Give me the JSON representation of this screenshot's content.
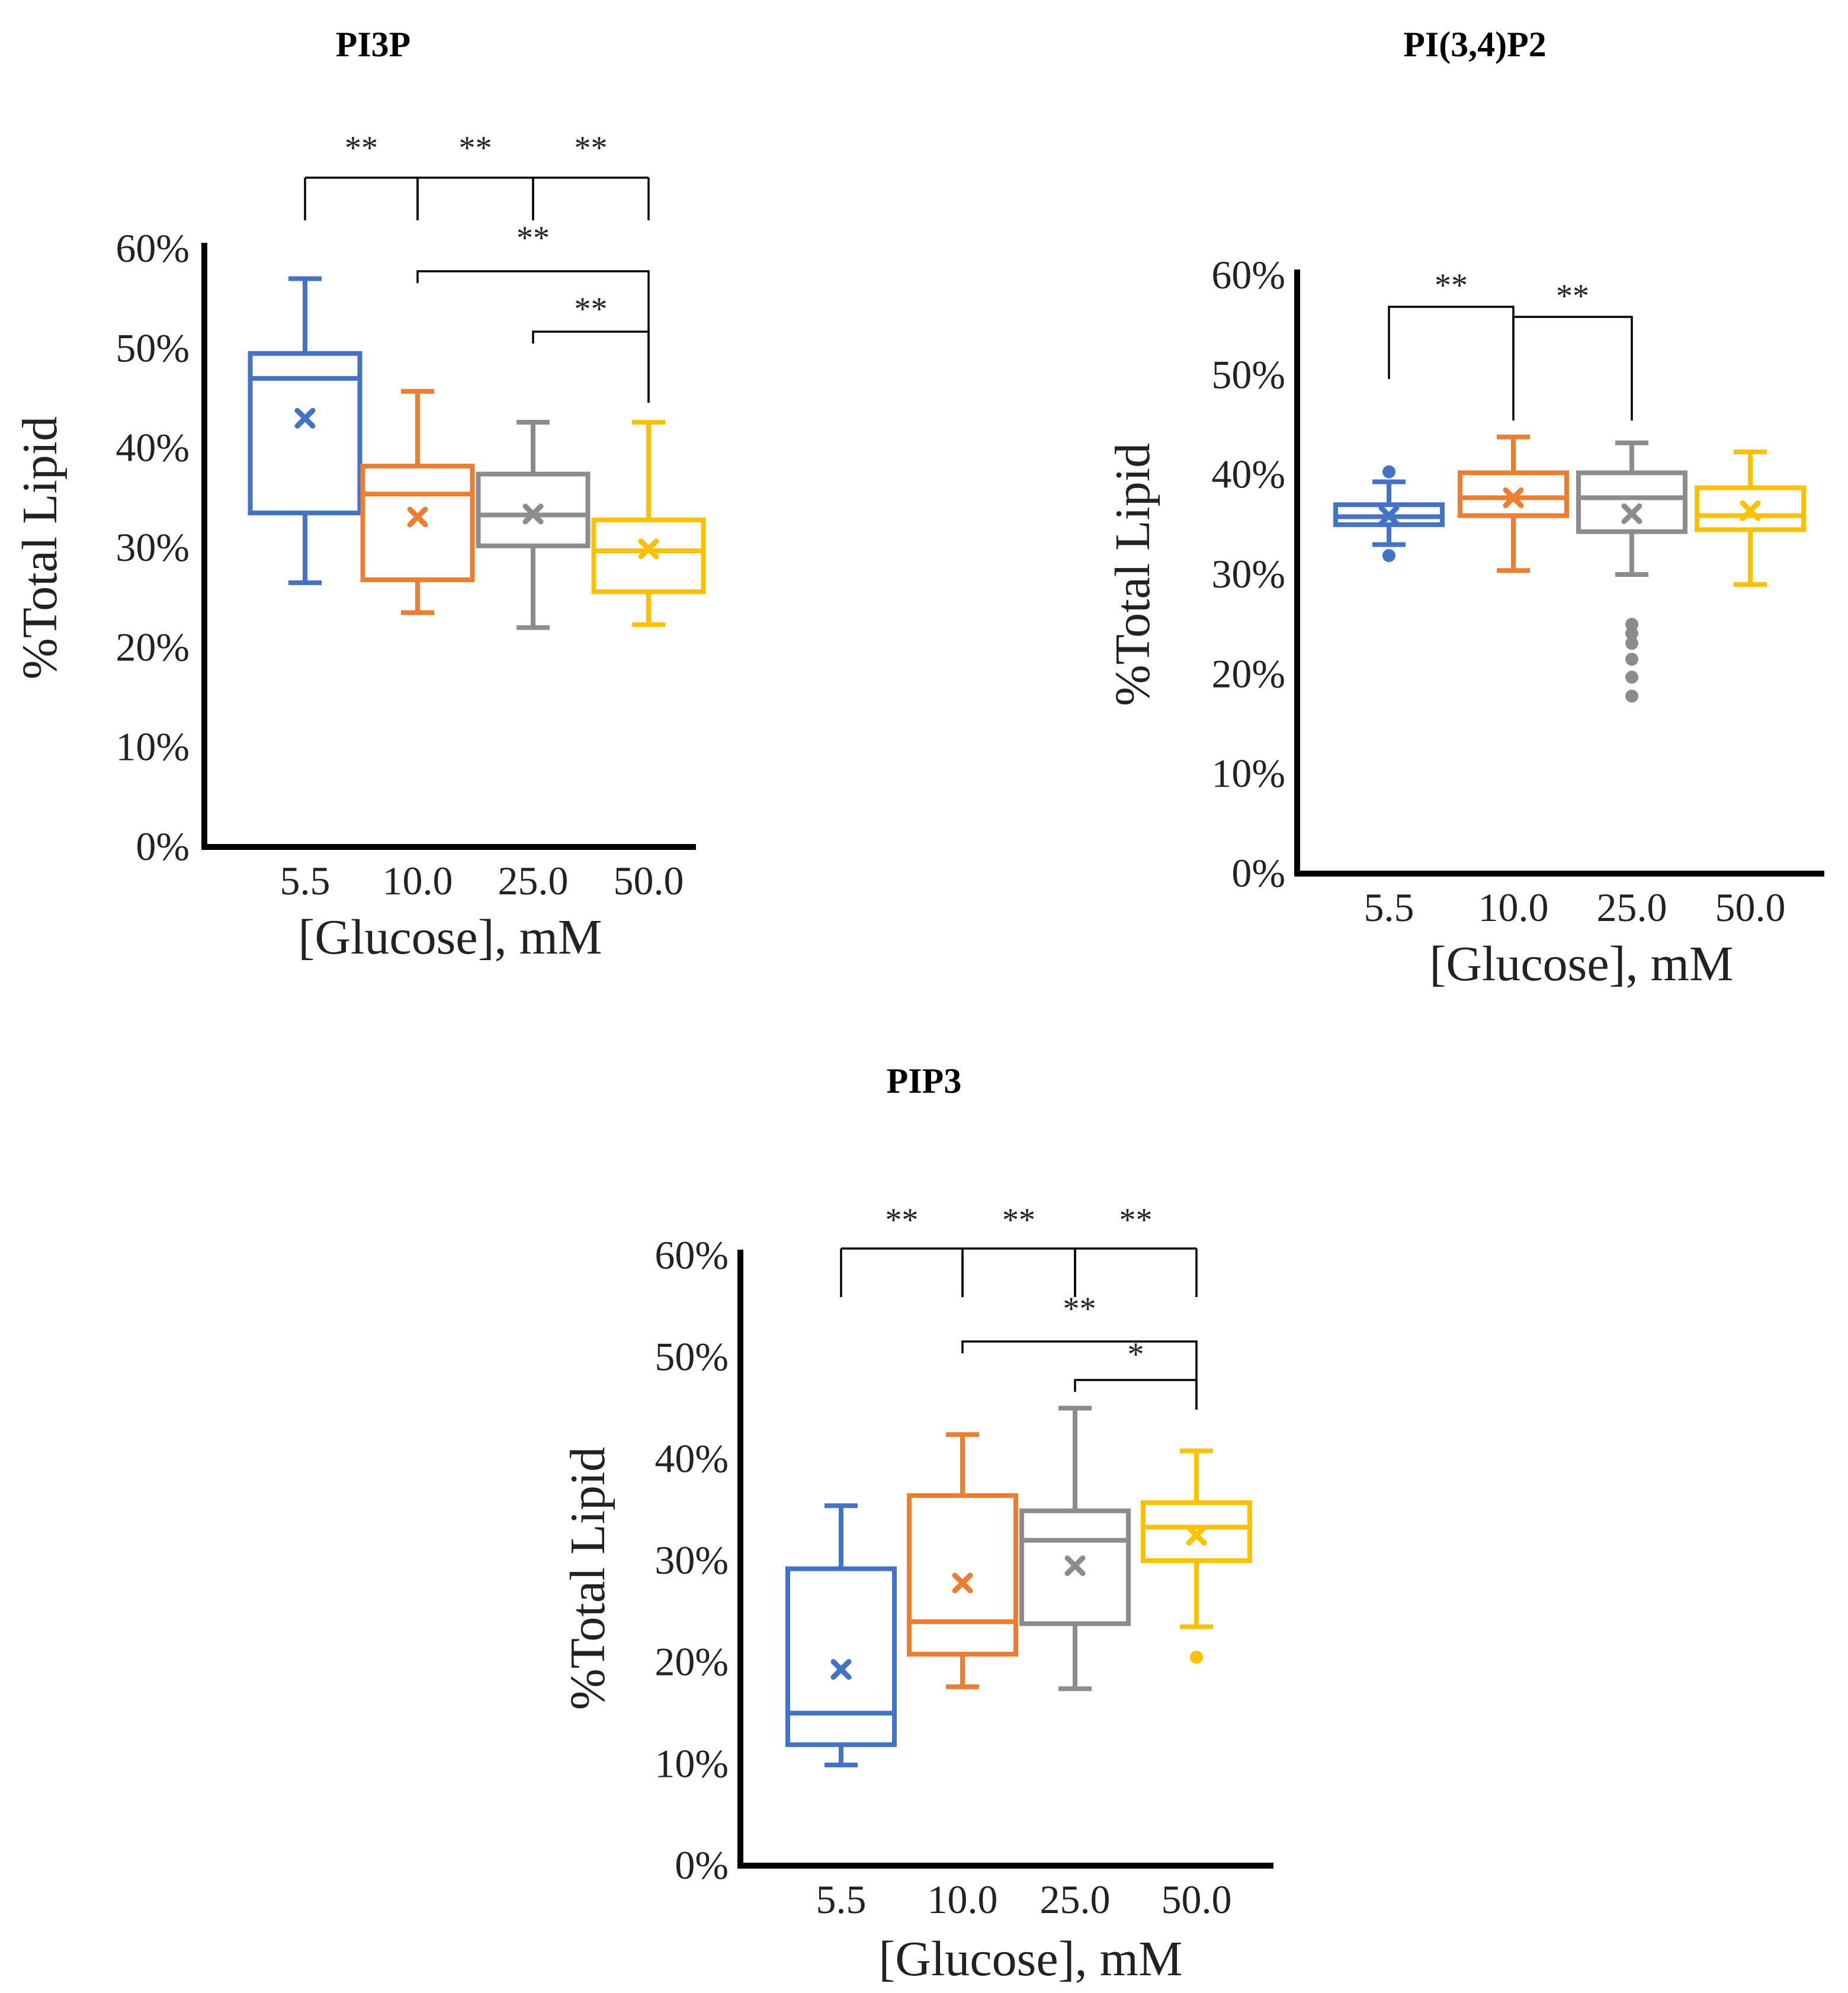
{
  "figure": {
    "colors": {
      "5.5": "#4472C4",
      "10.0": "#ED7D31",
      "25.0": "#8C8C8C",
      "50.0": "#FFC000"
    }
  },
  "chart_data": [
    {
      "type": "box",
      "title": "PI3P",
      "xlabel": "[Glucose], mM",
      "ylabel": "%Total Lipid",
      "ylim": [
        0,
        60
      ],
      "yticks": [
        "0%",
        "10%",
        "20%",
        "30%",
        "40%",
        "50%",
        "60%"
      ],
      "categories": [
        "5.5",
        "10.0",
        "25.0",
        "50.0"
      ],
      "boxes": [
        {
          "category": "5.5",
          "whisker_low": 26.5,
          "q1": 33.5,
          "median": 47.0,
          "q3": 49.5,
          "whisker_high": 57.0,
          "mean": 43.0,
          "outliers": []
        },
        {
          "category": "10.0",
          "whisker_low": 23.5,
          "q1": 26.8,
          "median": 35.4,
          "q3": 38.2,
          "whisker_high": 45.7,
          "mean": 33.1,
          "outliers": []
        },
        {
          "category": "25.0",
          "whisker_low": 22.0,
          "q1": 30.2,
          "median": 33.3,
          "q3": 37.4,
          "whisker_high": 42.6,
          "mean": 33.4,
          "outliers": []
        },
        {
          "category": "50.0",
          "whisker_low": 22.3,
          "q1": 25.6,
          "median": 29.7,
          "q3": 32.8,
          "whisker_high": 42.6,
          "mean": 29.9,
          "outliers": []
        }
      ],
      "significance": [
        {
          "from": "5.5",
          "to": "10.0",
          "label": "**"
        },
        {
          "from": "10.0",
          "to": "25.0",
          "label": "**"
        },
        {
          "from": "25.0",
          "to": "50.0",
          "label": "**"
        },
        {
          "from": "10.0",
          "to": "50.0",
          "label": "**"
        },
        {
          "from": "25.0",
          "to": "50.0",
          "label": "**"
        }
      ]
    },
    {
      "type": "box",
      "title": "PI(3,4)P2",
      "xlabel": "[Glucose], mM",
      "ylabel": "%Total Lipid",
      "ylim": [
        0,
        60
      ],
      "yticks": [
        "0%",
        "10%",
        "20%",
        "30%",
        "40%",
        "50%",
        "60%"
      ],
      "categories": [
        "5.5",
        "10.0",
        "25.0",
        "50.0"
      ],
      "boxes": [
        {
          "category": "5.5",
          "whisker_low": 33.0,
          "q1": 35.0,
          "median": 35.8,
          "q3": 37.0,
          "whisker_high": 39.3,
          "mean": 35.9,
          "outliers": [
            31.9,
            40.3
          ]
        },
        {
          "category": "10.0",
          "whisker_low": 30.4,
          "q1": 35.9,
          "median": 37.7,
          "q3": 40.2,
          "whisker_high": 43.8,
          "mean": 37.7,
          "outliers": []
        },
        {
          "category": "25.0",
          "whisker_low": 30.0,
          "q1": 34.3,
          "median": 37.7,
          "q3": 40.2,
          "whisker_high": 43.2,
          "mean": 36.1,
          "outliers": [
            17.8,
            19.7,
            21.5,
            23.1,
            24.1,
            25.0
          ]
        },
        {
          "category": "50.0",
          "whisker_low": 29.0,
          "q1": 34.5,
          "median": 35.9,
          "q3": 38.7,
          "whisker_high": 42.3,
          "mean": 36.4,
          "outliers": []
        }
      ],
      "significance": [
        {
          "from": "5.5",
          "to": "10.0",
          "label": "**"
        },
        {
          "from": "10.0",
          "to": "25.0",
          "label": "**"
        }
      ]
    },
    {
      "type": "box",
      "title": "PIP3",
      "xlabel": "[Glucose], mM",
      "ylabel": "%Total Lipid",
      "ylim": [
        0,
        60
      ],
      "yticks": [
        "0%",
        "10%",
        "20%",
        "30%",
        "40%",
        "50%",
        "60%"
      ],
      "categories": [
        "5.5",
        "10.0",
        "25.0",
        "50.0"
      ],
      "boxes": [
        {
          "category": "5.5",
          "whisker_low": 9.9,
          "q1": 11.9,
          "median": 15.0,
          "q3": 29.2,
          "whisker_high": 35.4,
          "mean": 19.3,
          "outliers": []
        },
        {
          "category": "10.0",
          "whisker_low": 17.6,
          "q1": 20.8,
          "median": 24.0,
          "q3": 36.4,
          "whisker_high": 42.4,
          "mean": 27.8,
          "outliers": []
        },
        {
          "category": "25.0",
          "whisker_low": 17.4,
          "q1": 23.8,
          "median": 32.0,
          "q3": 34.9,
          "whisker_high": 45.0,
          "mean": 29.5,
          "outliers": []
        },
        {
          "category": "50.0",
          "whisker_low": 23.5,
          "q1": 30.0,
          "median": 33.3,
          "q3": 35.7,
          "whisker_high": 40.8,
          "mean": 32.5,
          "outliers": [
            20.5
          ]
        }
      ],
      "significance": [
        {
          "from": "5.5",
          "to": "10.0",
          "label": "**"
        },
        {
          "from": "10.0",
          "to": "25.0",
          "label": "**"
        },
        {
          "from": "25.0",
          "to": "50.0",
          "label": "**"
        },
        {
          "from": "10.0",
          "to": "50.0",
          "label": "**"
        },
        {
          "from": "25.0",
          "to": "50.0",
          "label": "*"
        }
      ]
    }
  ]
}
